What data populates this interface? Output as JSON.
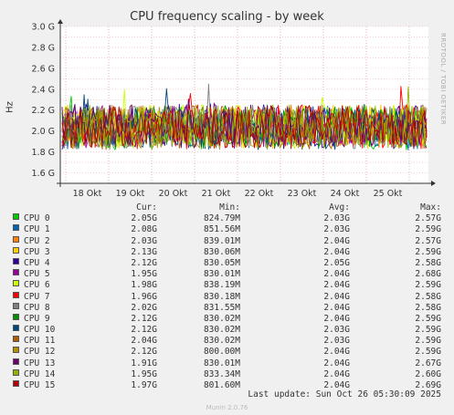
{
  "chart_data": {
    "type": "line",
    "title": "CPU frequency scaling - by week",
    "ylabel": "Hz",
    "side_text": "RRDTOOL / TOBI OETIKER",
    "ylim": [
      1.5,
      3.0
    ],
    "y_ticks": [
      "1.6 G",
      "1.8 G",
      "2.0 G",
      "2.2 G",
      "2.4 G",
      "2.6 G",
      "2.8 G",
      "3.0 G"
    ],
    "y_tick_values": [
      1.6,
      1.8,
      2.0,
      2.2,
      2.4,
      2.6,
      2.8,
      3.0
    ],
    "x_ticks": [
      "18 Okt",
      "19 Okt",
      "20 Okt",
      "21 Okt",
      "22 Okt",
      "23 Okt",
      "24 Okt",
      "25 Okt"
    ],
    "grid": true,
    "legend_position": "bottom",
    "legend_headers": {
      "cur": "Cur:",
      "min": "Min:",
      "avg": "Avg:",
      "max": "Max:"
    },
    "series": [
      {
        "name": "CPU 0",
        "color": "#00cc00",
        "cur": "2.05G",
        "min": "824.79M",
        "avg": "2.03G",
        "max": "2.57G"
      },
      {
        "name": "CPU 1",
        "color": "#0066b3",
        "cur": "2.08G",
        "min": "851.56M",
        "avg": "2.03G",
        "max": "2.59G"
      },
      {
        "name": "CPU 2",
        "color": "#ff8000",
        "cur": "2.03G",
        "min": "839.01M",
        "avg": "2.04G",
        "max": "2.57G"
      },
      {
        "name": "CPU 3",
        "color": "#ffcc00",
        "cur": "2.13G",
        "min": "830.06M",
        "avg": "2.04G",
        "max": "2.59G"
      },
      {
        "name": "CPU 4",
        "color": "#330099",
        "cur": "2.12G",
        "min": "830.05M",
        "avg": "2.05G",
        "max": "2.58G"
      },
      {
        "name": "CPU 5",
        "color": "#990099",
        "cur": "1.95G",
        "min": "830.01M",
        "avg": "2.04G",
        "max": "2.68G"
      },
      {
        "name": "CPU 6",
        "color": "#ccff00",
        "cur": "1.98G",
        "min": "838.19M",
        "avg": "2.04G",
        "max": "2.59G"
      },
      {
        "name": "CPU 7",
        "color": "#ff0000",
        "cur": "1.96G",
        "min": "830.18M",
        "avg": "2.04G",
        "max": "2.58G"
      },
      {
        "name": "CPU 8",
        "color": "#808080",
        "cur": "2.02G",
        "min": "831.55M",
        "avg": "2.04G",
        "max": "2.58G"
      },
      {
        "name": "CPU 9",
        "color": "#008f00",
        "cur": "2.12G",
        "min": "830.02M",
        "avg": "2.04G",
        "max": "2.59G"
      },
      {
        "name": "CPU 10",
        "color": "#00487d",
        "cur": "2.12G",
        "min": "830.02M",
        "avg": "2.03G",
        "max": "2.59G"
      },
      {
        "name": "CPU 11",
        "color": "#b35a00",
        "cur": "2.04G",
        "min": "830.02M",
        "avg": "2.03G",
        "max": "2.59G"
      },
      {
        "name": "CPU 12",
        "color": "#b38f00",
        "cur": "2.12G",
        "min": "800.00M",
        "avg": "2.04G",
        "max": "2.59G"
      },
      {
        "name": "CPU 13",
        "color": "#6b006b",
        "cur": "1.91G",
        "min": "830.01M",
        "avg": "2.04G",
        "max": "2.67G"
      },
      {
        "name": "CPU 14",
        "color": "#8fb300",
        "cur": "1.95G",
        "min": "833.34M",
        "avg": "2.04G",
        "max": "2.60G"
      },
      {
        "name": "CPU 15",
        "color": "#b30000",
        "cur": "1.97G",
        "min": "801.60M",
        "avg": "2.04G",
        "max": "2.69G"
      }
    ]
  },
  "footer": {
    "last_update": "Last update: Sun Oct 26 05:30:09 2025"
  },
  "munin_version": "Munin 2.0.76"
}
